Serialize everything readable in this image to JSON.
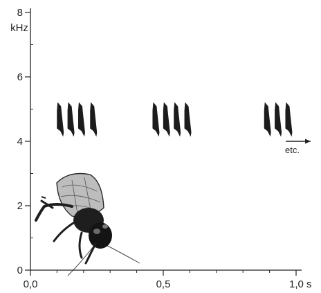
{
  "chart_data": {
    "type": "scatter",
    "title": "",
    "xlabel": "",
    "ylabel": "",
    "x_unit": "s",
    "y_unit": "kHz",
    "xlim": [
      0.0,
      1.0
    ],
    "ylim": [
      0,
      8
    ],
    "x_ticks": [
      {
        "value": 0.0,
        "label": "0,0"
      },
      {
        "value": 0.5,
        "label": "0,5"
      },
      {
        "value": 1.0,
        "label": "1,0 s"
      }
    ],
    "y_ticks": [
      {
        "value": 0,
        "label": "0"
      },
      {
        "value": 2,
        "label": "2"
      },
      {
        "value": 4,
        "label": "4"
      },
      {
        "value": 6,
        "label": "6"
      },
      {
        "value": 8,
        "label": "8"
      }
    ],
    "grid": false,
    "annotation": "etc.",
    "syllable_freq_range_khz": [
      4.4,
      5.0
    ],
    "echemes": [
      {
        "syllable_times_s": [
          0.11,
          0.15,
          0.19,
          0.235
        ]
      },
      {
        "syllable_times_s": [
          0.47,
          0.51,
          0.55,
          0.59
        ]
      },
      {
        "syllable_times_s": [
          0.89,
          0.93,
          0.97
        ]
      }
    ]
  },
  "illustration": {
    "icon": "cricket-illustration-icon"
  }
}
